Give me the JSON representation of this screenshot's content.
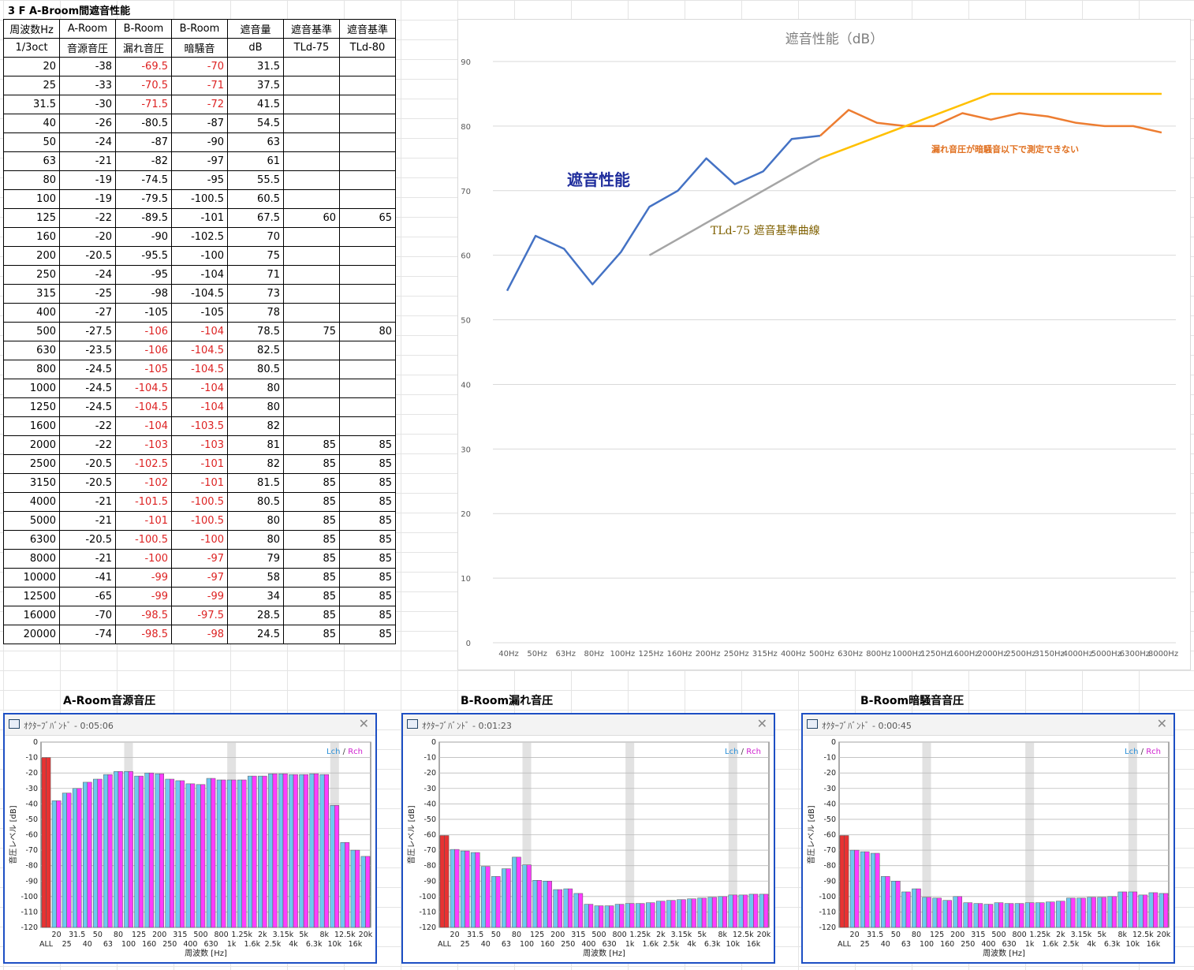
{
  "sheet_title": "3 F A-Broom間遮音性能",
  "table": {
    "header1": [
      "周波数Hz",
      "A-Room",
      "B-Room",
      "B-Room",
      "遮音量",
      "遮音基準",
      "遮音基準"
    ],
    "header2": [
      "1/3oct",
      "音源音圧",
      "漏れ音圧",
      "暗騒音",
      "dB",
      "TLd-75",
      "TLd-80"
    ],
    "rows": [
      [
        "20",
        "-38",
        "-69.5",
        "-70",
        "31.5",
        "",
        ""
      ],
      [
        "25",
        "-33",
        "-70.5",
        "-71",
        "37.5",
        "",
        ""
      ],
      [
        "31.5",
        "-30",
        "-71.5",
        "-72",
        "41.5",
        "",
        ""
      ],
      [
        "40",
        "-26",
        "-80.5",
        "-87",
        "54.5",
        "",
        ""
      ],
      [
        "50",
        "-24",
        "-87",
        "-90",
        "63",
        "",
        ""
      ],
      [
        "63",
        "-21",
        "-82",
        "-97",
        "61",
        "",
        ""
      ],
      [
        "80",
        "-19",
        "-74.5",
        "-95",
        "55.5",
        "",
        ""
      ],
      [
        "100",
        "-19",
        "-79.5",
        "-100.5",
        "60.5",
        "",
        ""
      ],
      [
        "125",
        "-22",
        "-89.5",
        "-101",
        "67.5",
        "60",
        "65"
      ],
      [
        "160",
        "-20",
        "-90",
        "-102.5",
        "70",
        "",
        ""
      ],
      [
        "200",
        "-20.5",
        "-95.5",
        "-100",
        "75",
        "",
        ""
      ],
      [
        "250",
        "-24",
        "-95",
        "-104",
        "71",
        "",
        ""
      ],
      [
        "315",
        "-25",
        "-98",
        "-104.5",
        "73",
        "",
        ""
      ],
      [
        "400",
        "-27",
        "-105",
        "-105",
        "78",
        "",
        ""
      ],
      [
        "500",
        "-27.5",
        "-106",
        "-104",
        "78.5",
        "75",
        "80"
      ],
      [
        "630",
        "-23.5",
        "-106",
        "-104.5",
        "82.5",
        "",
        ""
      ],
      [
        "800",
        "-24.5",
        "-105",
        "-104.5",
        "80.5",
        "",
        ""
      ],
      [
        "1000",
        "-24.5",
        "-104.5",
        "-104",
        "80",
        "",
        ""
      ],
      [
        "1250",
        "-24.5",
        "-104.5",
        "-104",
        "80",
        "",
        ""
      ],
      [
        "1600",
        "-22",
        "-104",
        "-103.5",
        "82",
        "",
        ""
      ],
      [
        "2000",
        "-22",
        "-103",
        "-103",
        "81",
        "85",
        "85"
      ],
      [
        "2500",
        "-20.5",
        "-102.5",
        "-101",
        "82",
        "85",
        "85"
      ],
      [
        "3150",
        "-20.5",
        "-102",
        "-101",
        "81.5",
        "85",
        "85"
      ],
      [
        "4000",
        "-21",
        "-101.5",
        "-100.5",
        "80.5",
        "85",
        "85"
      ],
      [
        "5000",
        "-21",
        "-101",
        "-100.5",
        "80",
        "85",
        "85"
      ],
      [
        "6300",
        "-20.5",
        "-100.5",
        "-100",
        "80",
        "85",
        "85"
      ],
      [
        "8000",
        "-21",
        "-100",
        "-97",
        "79",
        "85",
        "85"
      ],
      [
        "10000",
        "-41",
        "-99",
        "-97",
        "58",
        "85",
        "85"
      ],
      [
        "12500",
        "-65",
        "-99",
        "-99",
        "34",
        "85",
        "85"
      ],
      [
        "16000",
        "-70",
        "-98.5",
        "-97.5",
        "28.5",
        "85",
        "85"
      ],
      [
        "20000",
        "-74",
        "-98.5",
        "-98",
        "24.5",
        "85",
        "85"
      ]
    ],
    "red_rows": [
      0,
      1,
      2,
      14,
      15,
      16,
      17,
      18,
      19,
      20,
      21,
      22,
      23,
      24,
      25,
      26,
      27,
      28,
      29,
      30
    ]
  },
  "chart_data": [
    {
      "type": "line",
      "title": "遮音性能（dB）",
      "categories": [
        "40Hz",
        "50Hz",
        "63Hz",
        "80Hz",
        "100Hz",
        "125Hz",
        "160Hz",
        "200Hz",
        "250Hz",
        "315Hz",
        "400Hz",
        "500Hz",
        "630Hz",
        "800Hz",
        "1000Hz",
        "1250Hz",
        "1600Hz",
        "2000Hz",
        "2500Hz",
        "3150Hz",
        "4000Hz",
        "5000Hz",
        "6300Hz",
        "8000Hz"
      ],
      "ylim": [
        0,
        90
      ],
      "yticks": [
        0,
        10,
        20,
        30,
        40,
        50,
        60,
        70,
        80,
        90
      ],
      "grid": true,
      "series": [
        {
          "color": "#4472c4",
          "values": [
            54.5,
            63,
            61,
            55.5,
            60.5,
            67.5,
            70,
            75,
            71,
            73,
            78,
            78.5,
            null,
            null,
            null,
            null,
            null,
            null,
            null,
            null,
            null,
            null,
            null,
            null
          ]
        },
        {
          "color": "#ed7d31",
          "values": [
            null,
            null,
            null,
            null,
            null,
            null,
            null,
            null,
            null,
            null,
            null,
            78.5,
            82.5,
            80.5,
            80,
            80,
            82,
            81,
            82,
            81.5,
            80.5,
            80,
            80,
            79
          ]
        },
        {
          "color": "#a5a5a5",
          "values": [
            null,
            null,
            null,
            null,
            null,
            60,
            null,
            null,
            null,
            null,
            null,
            75,
            null,
            null,
            null,
            null,
            null,
            null,
            null,
            null,
            null,
            null,
            null,
            null
          ]
        },
        {
          "color": "#ffc000",
          "values": [
            null,
            null,
            null,
            null,
            null,
            null,
            null,
            null,
            null,
            null,
            null,
            75,
            null,
            null,
            null,
            null,
            null,
            85,
            85,
            85,
            85,
            85,
            85,
            85
          ]
        }
      ],
      "annotations": [
        {
          "text": "遮音性能",
          "color": "#1f2d9c"
        },
        {
          "text": "TLd-75  遮音基準曲線",
          "color": "#7f6000"
        },
        {
          "text": "漏れ音圧が暗騒音以下で測定できない",
          "color": "#e07020"
        }
      ]
    },
    {
      "type": "bar",
      "title": "A-Room音源音圧",
      "window_title": "ｵｸﾀｰﾌﾞﾊﾞﾝﾄﾞ - 0:05:06",
      "all_value": -10,
      "values": [
        -38,
        -33,
        -30,
        -26,
        -24,
        -21,
        -19,
        -19,
        -22,
        -20,
        -20.5,
        -24,
        -25,
        -27,
        -27.5,
        -23.5,
        -24.5,
        -24.5,
        -24.5,
        -22,
        -22,
        -20.5,
        -20.5,
        -21,
        -21,
        -20.5,
        -21,
        -41,
        -65,
        -70,
        -74
      ]
    },
    {
      "type": "bar",
      "title": "B-Room漏れ音圧",
      "window_title": "ｵｸﾀｰﾌﾞﾊﾞﾝﾄﾞ - 0:01:23",
      "all_value": -60.5,
      "values": [
        -69.5,
        -70.5,
        -71.5,
        -80.5,
        -87,
        -82,
        -74.5,
        -79.5,
        -89.5,
        -90,
        -95.5,
        -95,
        -98,
        -105,
        -106,
        -106,
        -105,
        -104.5,
        -104.5,
        -104,
        -103,
        -102.5,
        -102,
        -101.5,
        -101,
        -100.5,
        -100,
        -99,
        -99,
        -98.5,
        -98.5
      ]
    },
    {
      "type": "bar",
      "title": "B-Room暗騒音音圧",
      "window_title": "ｵｸﾀｰﾌﾞﾊﾞﾝﾄﾞ - 0:00:45",
      "all_value": -60.5,
      "values": [
        -70,
        -71,
        -72,
        -87,
        -90,
        -97,
        -95,
        -100.5,
        -101,
        -102.5,
        -100,
        -104,
        -104.5,
        -105,
        -104,
        -104.5,
        -104.5,
        -104,
        -104,
        -103.5,
        -103,
        -101,
        -101,
        -100.5,
        -100.5,
        -100,
        -97,
        -97,
        -99,
        -97.5,
        -98
      ]
    }
  ],
  "octave": {
    "ylabel": "音圧レベル [dB]",
    "xlabel": "周波数 [Hz]",
    "yticks": [
      0,
      -10,
      -20,
      -30,
      -40,
      -50,
      -60,
      -70,
      -80,
      -90,
      -100,
      -110,
      -120
    ],
    "ylim": [
      -120,
      0
    ],
    "legend_l": "Lch",
    "legend_sep": " / ",
    "legend_r": "Rch",
    "xlabels_top": [
      "20",
      "31.5",
      "50",
      "80",
      "125",
      "200",
      "315",
      "500",
      "800",
      "1.25k",
      "2k",
      "3.15k",
      "5k",
      "8k",
      "12.5k",
      "20k"
    ],
    "xlabels_bottom": [
      "ALL",
      "25",
      "40",
      "63",
      "100",
      "160",
      "250",
      "400",
      "630",
      "1k",
      "1.6k",
      "2.5k",
      "4k",
      "6.3k",
      "10k",
      "16k"
    ],
    "lch_color": "#6ec8f0",
    "rch_color": "#ff3cff",
    "all_color": "#e83232"
  }
}
